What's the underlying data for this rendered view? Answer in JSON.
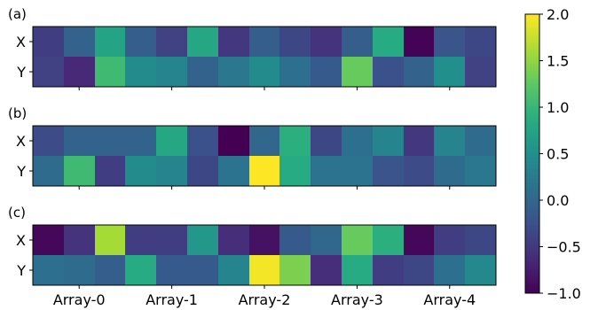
{
  "chart_data": {
    "type": "heatmap",
    "categories": [
      "Array-0",
      "Array-1",
      "Array-2",
      "Array-3",
      "Array-4"
    ],
    "rows": [
      "X",
      "Y"
    ],
    "colormap": "viridis",
    "vmin": -1.0,
    "vmax": 2.0,
    "colorbar_ticks": [
      "−1.0",
      "−0.5",
      "0.0",
      "0.5",
      "1.0",
      "1.5",
      "2.0"
    ],
    "colorbar_tick_values": [
      -1.0,
      -0.5,
      0.0,
      0.5,
      1.0,
      1.5,
      2.0
    ],
    "panels": [
      {
        "label": "(a)",
        "values": [
          [
            -0.45,
            -0.05,
            0.75,
            -0.1,
            -0.4,
            0.8,
            -0.5,
            -0.1,
            -0.35,
            -0.55,
            -0.1,
            0.85,
            -0.98,
            -0.2,
            -0.35
          ],
          [
            -0.4,
            -0.65,
            1.05,
            0.45,
            0.35,
            -0.05,
            0.2,
            0.45,
            0.1,
            -0.15,
            1.3,
            -0.25,
            -0.05,
            0.5,
            -0.4
          ]
        ]
      },
      {
        "label": "(b)",
        "values": [
          [
            -0.3,
            -0.05,
            -0.05,
            -0.05,
            0.8,
            -0.25,
            -1.0,
            0.0,
            0.9,
            -0.35,
            0.1,
            0.35,
            -0.5,
            0.35,
            0.05
          ],
          [
            0.05,
            1.05,
            -0.45,
            0.45,
            0.35,
            -0.35,
            0.15,
            2.0,
            0.85,
            0.15,
            0.15,
            -0.2,
            -0.3,
            0.05,
            0.2
          ]
        ]
      },
      {
        "label": "(c)",
        "values": [
          [
            -0.95,
            -0.55,
            1.6,
            -0.45,
            -0.45,
            0.6,
            -0.6,
            -0.85,
            -0.15,
            0.0,
            1.3,
            0.9,
            -0.95,
            -0.45,
            -0.35
          ],
          [
            0.1,
            0.05,
            -0.1,
            0.85,
            -0.15,
            -0.15,
            0.35,
            1.95,
            1.4,
            -0.6,
            0.85,
            -0.45,
            -0.35,
            0.1,
            0.4
          ]
        ]
      }
    ]
  }
}
